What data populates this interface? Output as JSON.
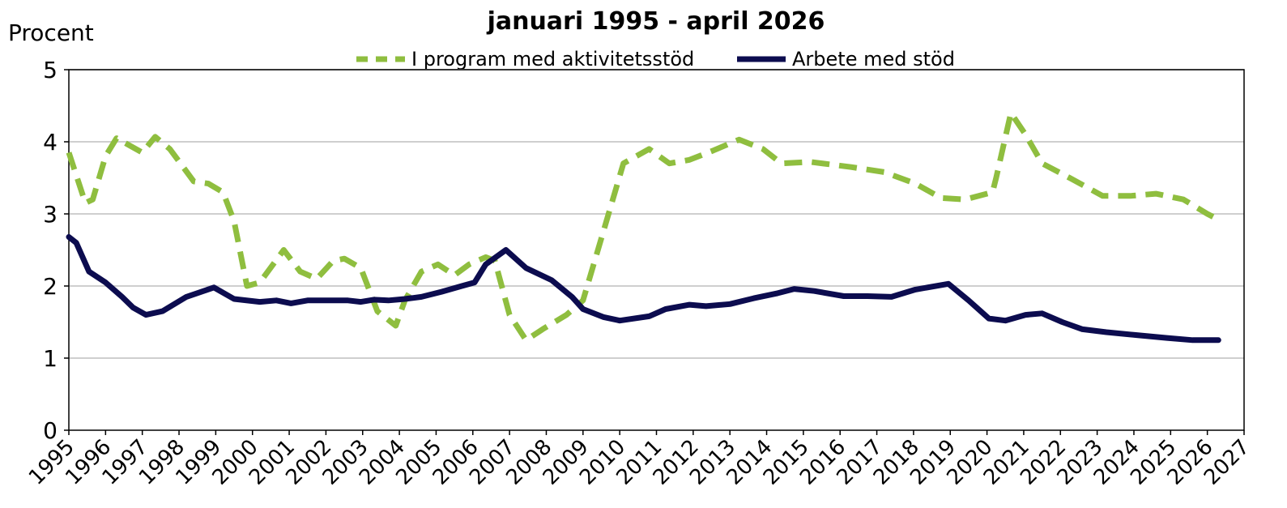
{
  "chart_data": {
    "type": "line",
    "title": "januari 1995 - april 2026",
    "y_label": "Procent",
    "xlim": [
      1995,
      2027
    ],
    "xticks": [
      1995,
      1996,
      1997,
      1998,
      1999,
      2000,
      2001,
      2002,
      2003,
      2004,
      2005,
      2006,
      2007,
      2008,
      2009,
      2010,
      2011,
      2012,
      2013,
      2014,
      2015,
      2016,
      2017,
      2018,
      2019,
      2020,
      2021,
      2022,
      2023,
      2024,
      2025,
      2026,
      2027
    ],
    "ylim": [
      0,
      5
    ],
    "yticks": [
      0,
      1,
      2,
      3,
      4,
      5
    ],
    "grid": true,
    "series": [
      {
        "name": "I program med aktivitetsstöd",
        "color": "#8fbe3f",
        "dashed": true,
        "x": [
          1995.0,
          1995.45,
          1995.65,
          1996.0,
          1996.3,
          1996.65,
          1997.0,
          1997.35,
          1997.75,
          1998.4,
          1998.8,
          1999.2,
          1999.5,
          1999.85,
          2000.2,
          2000.85,
          2001.3,
          2001.75,
          2002.2,
          2002.5,
          2002.95,
          2003.4,
          2003.9,
          2004.15,
          2004.6,
          2005.05,
          2005.5,
          2005.9,
          2006.35,
          2006.6,
          2007.0,
          2007.45,
          2007.9,
          2008.55,
          2009.0,
          2009.55,
          2010.1,
          2010.8,
          2011.35,
          2011.9,
          2012.55,
          2013.25,
          2013.9,
          2014.4,
          2015.2,
          2016.3,
          2017.2,
          2018.05,
          2018.75,
          2019.4,
          2020.15,
          2020.25,
          2020.65,
          2021.05,
          2021.5,
          2022.25,
          2023.15,
          2023.9,
          2024.6,
          2025.35,
          2026.0,
          2026.3
        ],
        "values": [
          3.85,
          3.15,
          3.2,
          3.8,
          4.05,
          3.95,
          3.85,
          4.07,
          3.9,
          3.45,
          3.42,
          3.3,
          2.9,
          2.0,
          2.05,
          2.5,
          2.2,
          2.1,
          2.35,
          2.38,
          2.25,
          1.65,
          1.45,
          1.8,
          2.2,
          2.3,
          2.15,
          2.3,
          2.4,
          2.35,
          1.6,
          1.25,
          1.4,
          1.6,
          1.8,
          2.75,
          3.7,
          3.9,
          3.7,
          3.75,
          3.88,
          4.03,
          3.9,
          3.7,
          3.72,
          3.65,
          3.58,
          3.42,
          3.22,
          3.2,
          3.3,
          3.5,
          4.4,
          4.1,
          3.7,
          3.5,
          3.25,
          3.25,
          3.28,
          3.2,
          3.0,
          2.92
        ]
      },
      {
        "name": "Arbete med stöd",
        "color": "#0c0c4f",
        "dashed": false,
        "x": [
          1995.0,
          1995.2,
          1995.55,
          1996.0,
          1996.45,
          1996.75,
          1997.1,
          1997.55,
          1998.2,
          1998.95,
          1999.5,
          2000.2,
          2000.65,
          2001.05,
          2001.5,
          2002.6,
          2002.95,
          2003.3,
          2003.7,
          2004.15,
          2004.6,
          2005.15,
          2005.7,
          2006.05,
          2006.35,
          2006.9,
          2007.45,
          2008.15,
          2008.7,
          2009.0,
          2009.55,
          2010.0,
          2010.8,
          2011.25,
          2011.9,
          2012.35,
          2013.0,
          2013.65,
          2014.3,
          2014.75,
          2015.3,
          2016.1,
          2016.75,
          2017.4,
          2018.05,
          2018.95,
          2019.5,
          2020.05,
          2020.5,
          2021.05,
          2021.5,
          2022.05,
          2022.6,
          2023.25,
          2024.05,
          2024.9,
          2025.6,
          2026.3
        ],
        "values": [
          2.68,
          2.6,
          2.2,
          2.05,
          1.85,
          1.7,
          1.6,
          1.65,
          1.85,
          1.98,
          1.82,
          1.78,
          1.8,
          1.76,
          1.8,
          1.8,
          1.78,
          1.81,
          1.8,
          1.82,
          1.85,
          1.92,
          2.0,
          2.05,
          2.3,
          2.5,
          2.25,
          2.08,
          1.85,
          1.68,
          1.57,
          1.52,
          1.58,
          1.68,
          1.74,
          1.72,
          1.75,
          1.83,
          1.9,
          1.96,
          1.93,
          1.86,
          1.86,
          1.85,
          1.95,
          2.03,
          1.8,
          1.55,
          1.52,
          1.6,
          1.62,
          1.5,
          1.4,
          1.36,
          1.32,
          1.28,
          1.25,
          1.25
        ]
      }
    ]
  }
}
